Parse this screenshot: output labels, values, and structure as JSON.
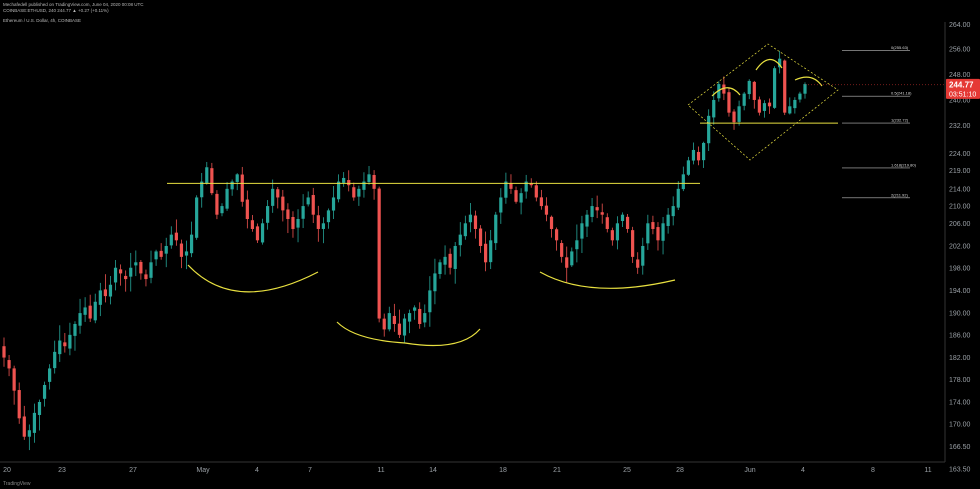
{
  "header": {
    "author": "Mechafedell published on TradingView.com, June 04, 2020 00:08 UTC",
    "symbol_line": "COINBASE:ETHUSD, 240  244.77 ▲ +0.27 (+0.11%)",
    "chart_title": "Ethereum / U.S. Dollar, 4h, COINBASE"
  },
  "footer": {
    "brand": "TradingView"
  },
  "colors": {
    "up": "#26a69a",
    "down": "#ef5350",
    "pattern": "#e8e040",
    "axis_text": "#9aa0a6",
    "price_badge": "#e53935",
    "background": "#000000"
  },
  "chart_data": {
    "type": "candlestick",
    "x_tick_labels": [
      "20",
      "23",
      "27",
      "May",
      "4",
      "7",
      "11",
      "14",
      "18",
      "21",
      "25",
      "28",
      "Jun",
      "4",
      "8",
      "11"
    ],
    "y_tick_labels": [
      "264.00",
      "256.00",
      "248.00",
      "240.00",
      "232.00",
      "224.00",
      "219.00",
      "214.00",
      "210.00",
      "206.00",
      "202.00",
      "198.00",
      "194.00",
      "190.00",
      "186.00",
      "182.00",
      "178.00",
      "174.00",
      "170.00",
      "166.50",
      "163.50",
      "160.50"
    ],
    "ylim": [
      158.5,
      266
    ],
    "last_price": "244.77",
    "countdown": "03:51:10",
    "fib_levels": [
      {
        "label": "0(255.63)",
        "price": 255.63
      },
      {
        "label": "0.5(241.18)",
        "price": 241.18
      },
      {
        "label": "1(232.72)",
        "price": 232.72
      },
      {
        "label": "1.618(219.80)",
        "price": 219.8
      },
      {
        "label": "2(211.92)",
        "price": 211.92
      }
    ],
    "neckline": {
      "price": 215.5
    },
    "closes": [
      182,
      180,
      176,
      171,
      168,
      169,
      172,
      174,
      177,
      180,
      183,
      185,
      184,
      186,
      188,
      190,
      191,
      189,
      192,
      194,
      193,
      195,
      198,
      197,
      196,
      198,
      199,
      197,
      196,
      199,
      201,
      200,
      202,
      204,
      203,
      200,
      201,
      204,
      212,
      216,
      220,
      213,
      208,
      210,
      214,
      216,
      218,
      211,
      207,
      205,
      203,
      206,
      210,
      214,
      212,
      209,
      207,
      205,
      207,
      210,
      212,
      208,
      205,
      206,
      209,
      212,
      216,
      217,
      215,
      212,
      214,
      216,
      218,
      214,
      189,
      187,
      190,
      188,
      186,
      189,
      190,
      191,
      188,
      190,
      194,
      197,
      199,
      200,
      198,
      202,
      204,
      206,
      208,
      205,
      202,
      199,
      203,
      208,
      212,
      216,
      214,
      211,
      213,
      216,
      215,
      212,
      210,
      208,
      205,
      203,
      200,
      198,
      201,
      203,
      206,
      208,
      210,
      209,
      208,
      205,
      203,
      206,
      208,
      205,
      200,
      198,
      202,
      206,
      205,
      203,
      206,
      208,
      210,
      214,
      218,
      222,
      225,
      222,
      227,
      235,
      240,
      245,
      242,
      236,
      233,
      238,
      242,
      246,
      240,
      236,
      239,
      238,
      250,
      253,
      236,
      238,
      240,
      242,
      245
    ]
  }
}
